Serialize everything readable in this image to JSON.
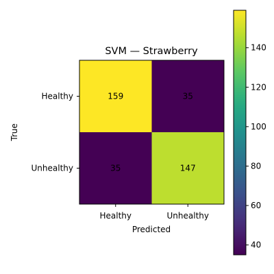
{
  "chart_data": {
    "type": "heatmap",
    "title": "SVM — Strawberry",
    "xlabel": "Predicted",
    "ylabel": "True",
    "x_categories": [
      "Healthy",
      "Unhealthy"
    ],
    "y_categories": [
      "Healthy",
      "Unhealthy"
    ],
    "matrix": [
      [
        159,
        35
      ],
      [
        35,
        147
      ]
    ],
    "colormap": "viridis",
    "colorbar": {
      "range": [
        35,
        159
      ],
      "ticks": [
        40,
        60,
        80,
        100,
        120,
        140
      ],
      "tick_labels": [
        "40",
        "60",
        "80",
        "100",
        "120",
        "140"
      ]
    },
    "grid": false
  }
}
